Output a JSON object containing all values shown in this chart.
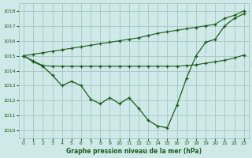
{
  "title": "Graphe pression niveau de la mer (hPa)",
  "bg_color": "#cfe8e8",
  "grid_color": "#9fbfbf",
  "line_color": "#1a5c1a",
  "xlim": [
    -0.5,
    23.5
  ],
  "ylim": [
    1009.5,
    1018.5
  ],
  "yticks": [
    1010,
    1011,
    1012,
    1013,
    1014,
    1015,
    1016,
    1017,
    1018
  ],
  "xticks": [
    0,
    1,
    2,
    3,
    4,
    5,
    6,
    7,
    8,
    9,
    10,
    11,
    12,
    13,
    14,
    15,
    16,
    17,
    18,
    19,
    20,
    21,
    22,
    23
  ],
  "hours": [
    0,
    1,
    2,
    3,
    4,
    5,
    6,
    7,
    8,
    9,
    10,
    11,
    12,
    13,
    14,
    15,
    16,
    17,
    18,
    19,
    20,
    21,
    22,
    23
  ],
  "pressure_actual": [
    1015.0,
    1014.6,
    1014.3,
    1013.7,
    1013.0,
    1013.3,
    1013.0,
    1012.1,
    1011.8,
    1012.2,
    1011.8,
    1012.2,
    1011.5,
    1010.7,
    1010.3,
    1010.2,
    1011.7,
    1013.5,
    1015.0,
    1015.9,
    1016.1,
    1017.0,
    1017.5,
    1017.8
  ],
  "pressure_max": [
    1015.0,
    1015.1,
    1015.2,
    1015.3,
    1015.4,
    1015.5,
    1015.6,
    1015.7,
    1015.8,
    1015.9,
    1016.0,
    1016.1,
    1016.2,
    1016.35,
    1016.5,
    1016.6,
    1016.7,
    1016.8,
    1016.9,
    1017.0,
    1017.1,
    1017.5,
    1017.7,
    1018.0
  ],
  "pressure_min": [
    1015.0,
    1014.65,
    1014.35,
    1014.3,
    1014.3,
    1014.3,
    1014.3,
    1014.3,
    1014.3,
    1014.3,
    1014.3,
    1014.3,
    1014.3,
    1014.3,
    1014.3,
    1014.3,
    1014.3,
    1014.35,
    1014.4,
    1014.5,
    1014.6,
    1014.7,
    1014.85,
    1015.05
  ]
}
